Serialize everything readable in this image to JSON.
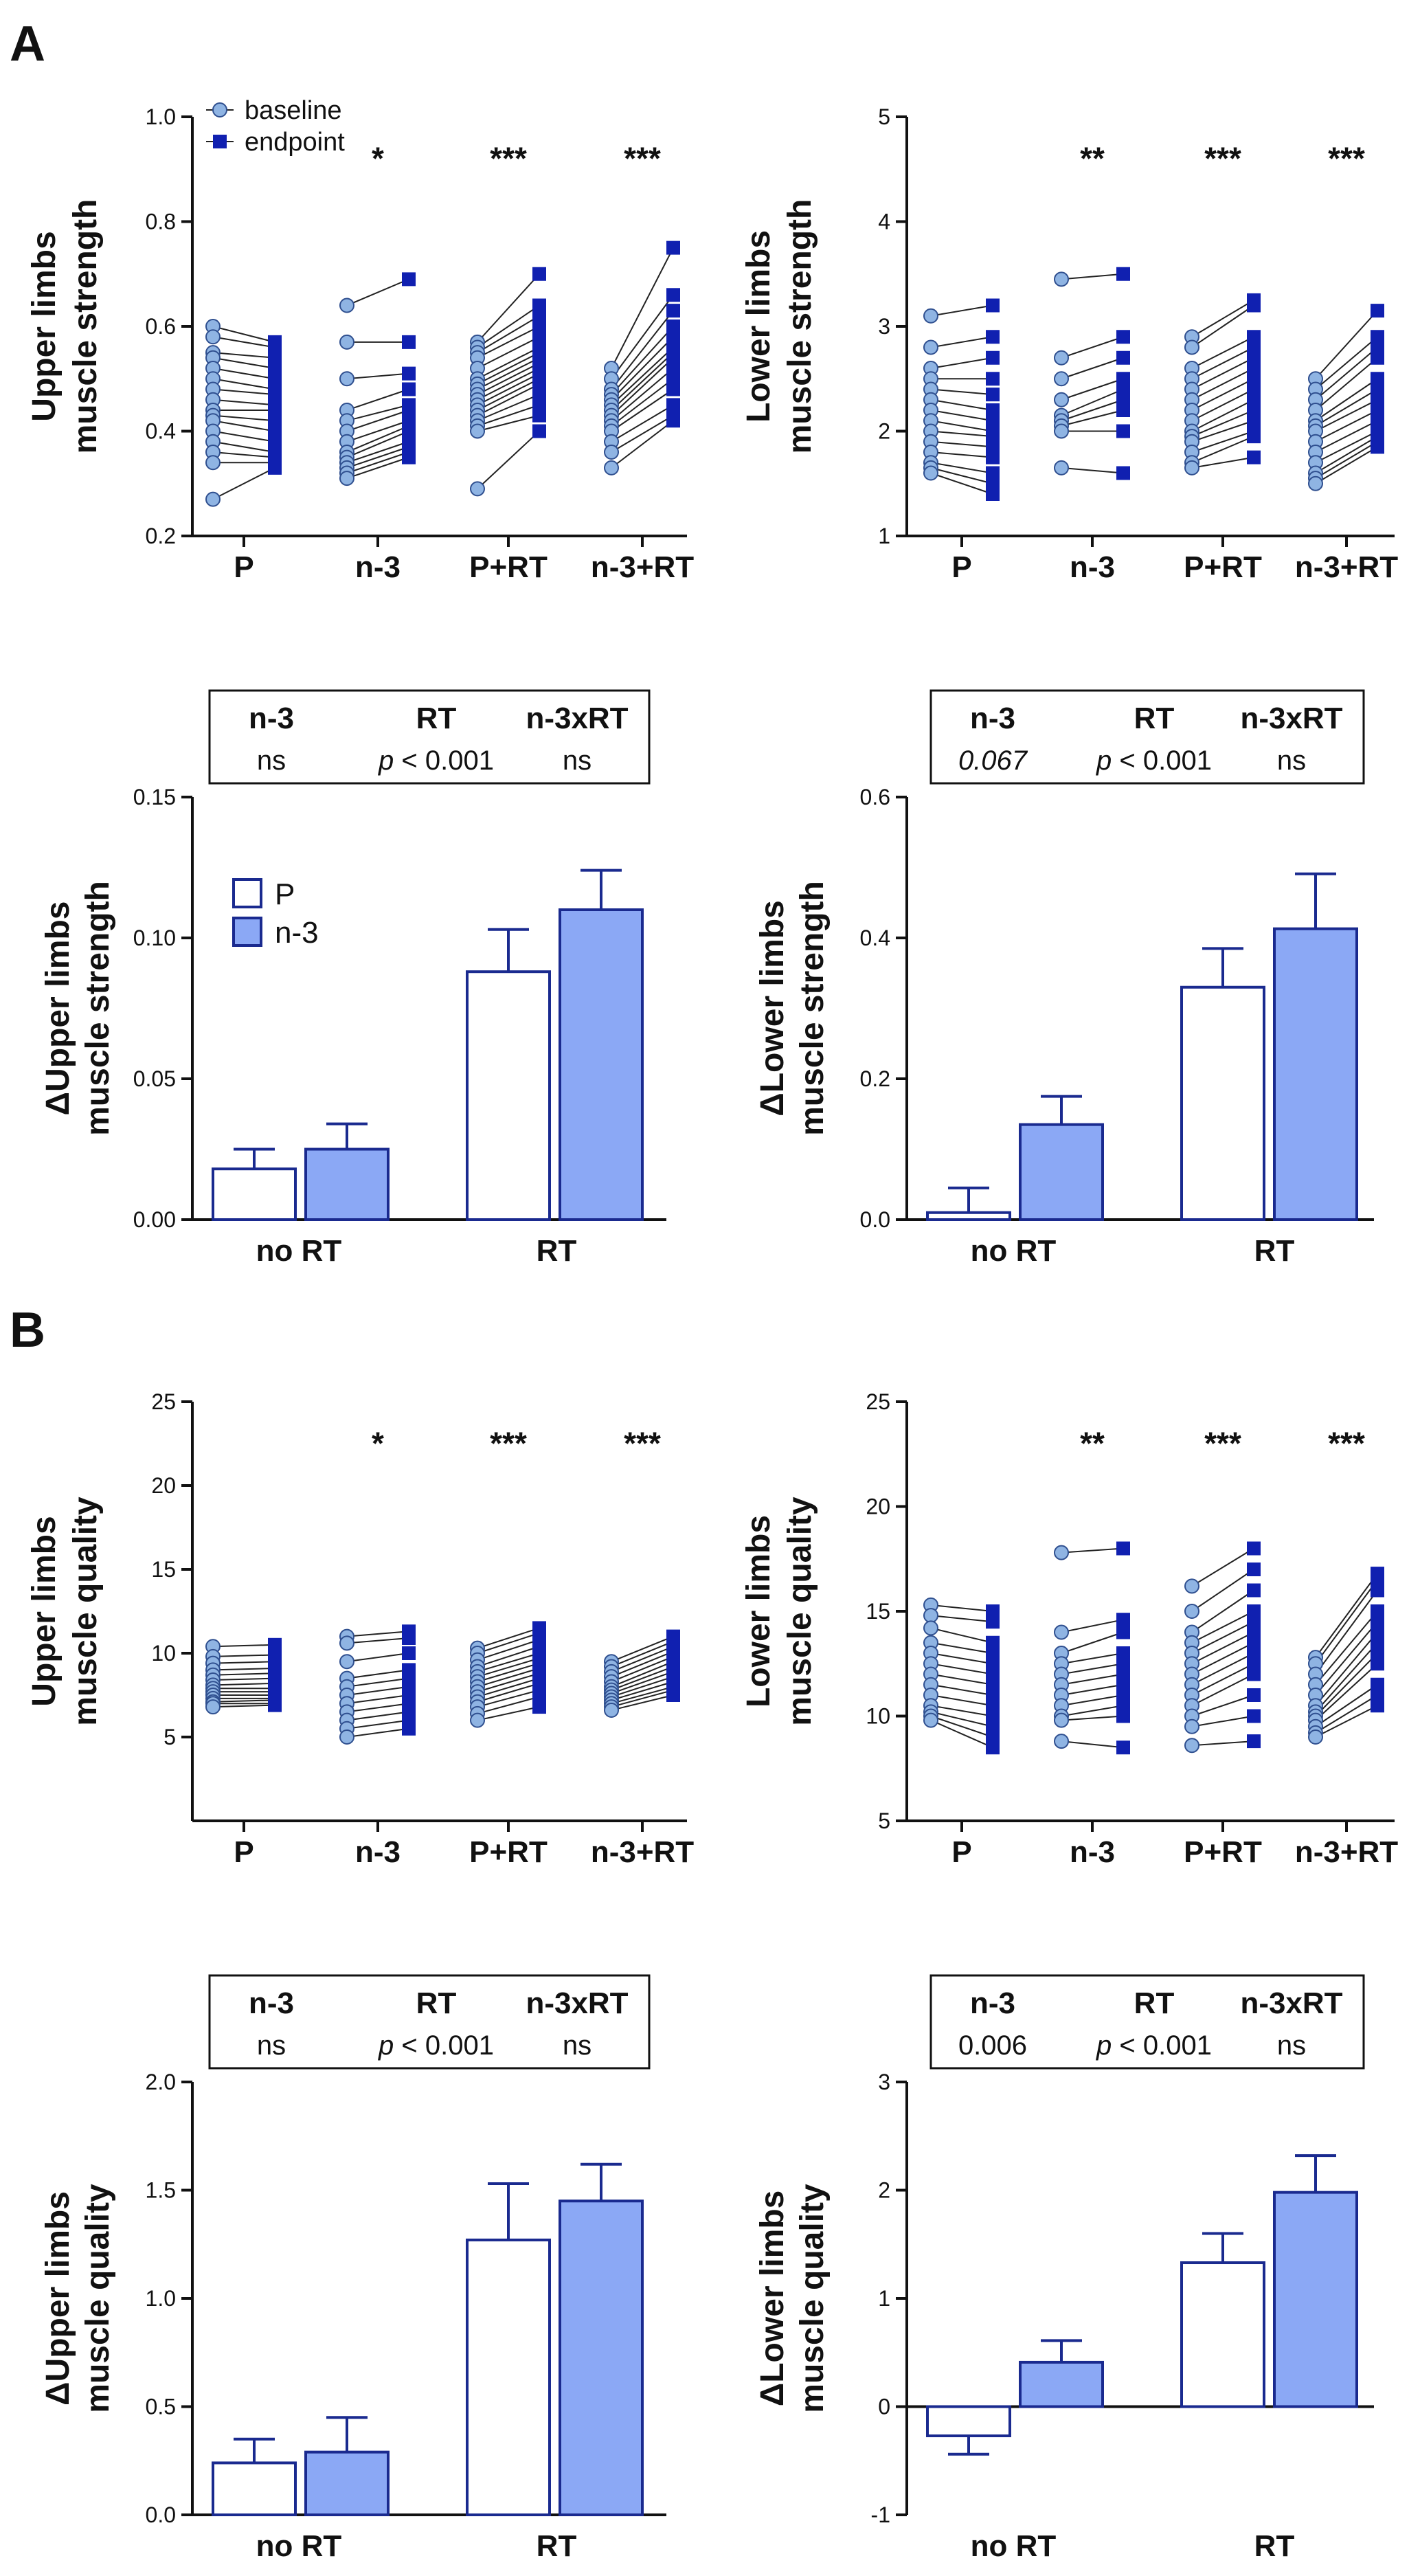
{
  "panel_labels": [
    "A",
    "B"
  ],
  "colors": {
    "baseline_fill": "#8fb4e3",
    "baseline_stroke": "#2f4f8f",
    "endpoint_fill": "#1020b0",
    "bar_p_fill": "#ffffff",
    "bar_n3_fill": "#8ba8f5",
    "bar_stroke": "#1a2a8f",
    "line": "#222222"
  },
  "legend_paired": {
    "baseline": "baseline",
    "endpoint": "endpoint"
  },
  "legend_bars": {
    "p": "P",
    "n3": "n-3"
  },
  "chart_data": [
    {
      "id": "upper-strength-paired",
      "type": "scatter",
      "ylabel": [
        "Upper limbs",
        "muscle strength"
      ],
      "categories": [
        "P",
        "n-3",
        "P+RT",
        "n-3+RT"
      ],
      "ylim": [
        0.2,
        1.0
      ],
      "yticks": [
        "0.2",
        "0.4",
        "0.6",
        "0.8",
        "1.0"
      ],
      "tickvals": [
        0.2,
        0.4,
        0.6,
        0.8,
        1.0
      ],
      "significance": [
        "",
        "*",
        "***",
        "***"
      ],
      "legend": true,
      "groups": [
        {
          "baseline": [
            0.6,
            0.58,
            0.55,
            0.54,
            0.52,
            0.5,
            0.48,
            0.46,
            0.44,
            0.43,
            0.42,
            0.4,
            0.38,
            0.36,
            0.34,
            0.27
          ],
          "endpoint": [
            0.57,
            0.56,
            0.54,
            0.52,
            0.5,
            0.48,
            0.47,
            0.45,
            0.44,
            0.42,
            0.4,
            0.38,
            0.36,
            0.35,
            0.34,
            0.33
          ]
        },
        {
          "baseline": [
            0.64,
            0.57,
            0.5,
            0.44,
            0.42,
            0.4,
            0.38,
            0.36,
            0.35,
            0.34,
            0.33,
            0.32,
            0.31
          ],
          "endpoint": [
            0.69,
            0.57,
            0.51,
            0.48,
            0.45,
            0.44,
            0.42,
            0.41,
            0.4,
            0.38,
            0.37,
            0.36,
            0.35
          ]
        },
        {
          "baseline": [
            0.57,
            0.56,
            0.55,
            0.54,
            0.52,
            0.5,
            0.49,
            0.48,
            0.47,
            0.46,
            0.45,
            0.44,
            0.43,
            0.42,
            0.41,
            0.4,
            0.29
          ],
          "endpoint": [
            0.7,
            0.64,
            0.62,
            0.6,
            0.58,
            0.56,
            0.55,
            0.54,
            0.53,
            0.52,
            0.51,
            0.5,
            0.49,
            0.47,
            0.45,
            0.43,
            0.4
          ]
        },
        {
          "baseline": [
            0.52,
            0.5,
            0.48,
            0.47,
            0.46,
            0.45,
            0.44,
            0.43,
            0.42,
            0.41,
            0.4,
            0.38,
            0.36,
            0.33
          ],
          "endpoint": [
            0.75,
            0.66,
            0.63,
            0.6,
            0.58,
            0.56,
            0.55,
            0.54,
            0.52,
            0.5,
            0.48,
            0.45,
            0.43,
            0.42
          ]
        }
      ]
    },
    {
      "id": "lower-strength-paired",
      "type": "scatter",
      "ylabel": [
        "Lower limbs",
        "muscle strength"
      ],
      "categories": [
        "P",
        "n-3",
        "P+RT",
        "n-3+RT"
      ],
      "ylim": [
        1,
        5
      ],
      "yticks": [
        "1",
        "2",
        "3",
        "4",
        "5"
      ],
      "tickvals": [
        1,
        2,
        3,
        4,
        5
      ],
      "significance": [
        "",
        "**",
        "***",
        "***"
      ],
      "legend": false,
      "groups": [
        {
          "baseline": [
            3.1,
            2.8,
            2.6,
            2.5,
            2.4,
            2.3,
            2.2,
            2.1,
            2.0,
            1.9,
            1.8,
            1.7,
            1.65,
            1.6
          ],
          "endpoint": [
            3.2,
            2.9,
            2.7,
            2.5,
            2.35,
            2.2,
            2.1,
            2.0,
            1.95,
            1.85,
            1.75,
            1.6,
            1.5,
            1.4
          ]
        },
        {
          "baseline": [
            3.45,
            2.7,
            2.5,
            2.3,
            2.15,
            2.1,
            2.05,
            2.0,
            1.65
          ],
          "endpoint": [
            3.5,
            2.9,
            2.7,
            2.5,
            2.4,
            2.3,
            2.2,
            2.0,
            1.6
          ]
        },
        {
          "baseline": [
            2.9,
            2.8,
            2.6,
            2.5,
            2.4,
            2.3,
            2.2,
            2.1,
            2.0,
            1.95,
            1.9,
            1.8,
            1.7,
            1.65
          ],
          "endpoint": [
            3.25,
            3.2,
            2.9,
            2.8,
            2.7,
            2.6,
            2.5,
            2.4,
            2.3,
            2.2,
            2.1,
            2.0,
            1.95,
            1.75
          ]
        },
        {
          "baseline": [
            2.5,
            2.4,
            2.3,
            2.2,
            2.1,
            2.05,
            2.0,
            1.9,
            1.8,
            1.7,
            1.6,
            1.55,
            1.5
          ],
          "endpoint": [
            3.15,
            2.9,
            2.8,
            2.7,
            2.5,
            2.4,
            2.3,
            2.2,
            2.1,
            2.0,
            1.95,
            1.9,
            1.85
          ]
        }
      ]
    },
    {
      "id": "delta-upper-strength",
      "type": "bar",
      "ylabel": [
        "ΔUpper limbs",
        "muscle strength"
      ],
      "categories": [
        "no RT",
        "RT"
      ],
      "ylim": [
        0,
        0.15
      ],
      "yticks": [
        "0.00",
        "0.05",
        "0.10",
        "0.15"
      ],
      "tickvals": [
        0,
        0.05,
        0.1,
        0.15
      ],
      "legend": true,
      "series": [
        {
          "name": "P",
          "values": [
            0.018,
            0.088
          ],
          "errors": [
            0.007,
            0.015
          ]
        },
        {
          "name": "n-3",
          "values": [
            0.025,
            0.11
          ],
          "errors": [
            0.009,
            0.014
          ]
        }
      ],
      "stats": {
        "headers": [
          "n-3",
          "RT",
          "n-3xRT"
        ],
        "values": [
          {
            "text": "ns",
            "italic": false
          },
          {
            "p": "p",
            "rest": " < 0.001"
          },
          {
            "text": "ns",
            "italic": false
          }
        ]
      }
    },
    {
      "id": "delta-lower-strength",
      "type": "bar",
      "ylabel": [
        "ΔLower limbs",
        "muscle strength"
      ],
      "categories": [
        "no RT",
        "RT"
      ],
      "ylim": [
        0,
        0.6
      ],
      "yticks": [
        "0.0",
        "0.2",
        "0.4",
        "0.6"
      ],
      "tickvals": [
        0,
        0.2,
        0.4,
        0.6
      ],
      "legend": false,
      "series": [
        {
          "name": "P",
          "values": [
            0.01,
            0.33
          ],
          "errors": [
            0.035,
            0.055
          ]
        },
        {
          "name": "n-3",
          "values": [
            0.135,
            0.413
          ],
          "errors": [
            0.04,
            0.078
          ]
        }
      ],
      "stats": {
        "headers": [
          "n-3",
          "RT",
          "n-3xRT"
        ],
        "values": [
          {
            "text": "0.067",
            "italic": true
          },
          {
            "p": "p",
            "rest": " < 0.001"
          },
          {
            "text": "ns",
            "italic": false
          }
        ]
      }
    },
    {
      "id": "upper-quality-paired",
      "type": "scatter",
      "ylabel": [
        "Upper limbs",
        "muscle quality"
      ],
      "categories": [
        "P",
        "n-3",
        "P+RT",
        "n-3+RT"
      ],
      "ylim": [
        0,
        25
      ],
      "yticks": [
        "5",
        "10",
        "15",
        "20",
        "25"
      ],
      "tickvals": [
        5,
        10,
        15,
        20,
        25
      ],
      "significance": [
        "",
        "*",
        "***",
        "***"
      ],
      "legend": false,
      "groups": [
        {
          "baseline": [
            10.4,
            9.8,
            9.4,
            9.0,
            8.7,
            8.4,
            8.1,
            7.9,
            7.7,
            7.5,
            7.3,
            7.1,
            7.0,
            6.8
          ],
          "endpoint": [
            10.5,
            9.9,
            9.5,
            9.1,
            8.8,
            8.5,
            8.2,
            7.9,
            7.7,
            7.5,
            7.3,
            7.2,
            7.0,
            6.9
          ]
        },
        {
          "baseline": [
            11.0,
            10.6,
            9.5,
            8.5,
            8.0,
            7.5,
            7.0,
            6.5,
            6.0,
            5.5,
            5.0
          ],
          "endpoint": [
            11.3,
            10.9,
            10.0,
            9.0,
            8.5,
            8.0,
            7.5,
            7.0,
            6.5,
            6.0,
            5.5
          ]
        },
        {
          "baseline": [
            10.3,
            10.0,
            9.6,
            9.2,
            8.9,
            8.6,
            8.3,
            8.0,
            7.7,
            7.4,
            7.1,
            6.8,
            6.4,
            6.0
          ],
          "endpoint": [
            11.5,
            11.2,
            10.8,
            10.4,
            10.0,
            9.7,
            9.4,
            9.1,
            8.8,
            8.5,
            8.2,
            7.8,
            7.4,
            6.8
          ]
        },
        {
          "baseline": [
            9.5,
            9.2,
            8.9,
            8.6,
            8.3,
            8.0,
            7.8,
            7.6,
            7.4,
            7.2,
            7.0,
            6.8,
            6.6
          ],
          "endpoint": [
            11.0,
            10.7,
            10.4,
            10.1,
            9.8,
            9.5,
            9.2,
            8.9,
            8.6,
            8.3,
            8.0,
            7.8,
            7.5
          ]
        }
      ]
    },
    {
      "id": "lower-quality-paired",
      "type": "scatter",
      "ylabel": [
        "Lower limbs",
        "muscle quality"
      ],
      "categories": [
        "P",
        "n-3",
        "P+RT",
        "n-3+RT"
      ],
      "ylim": [
        5,
        25
      ],
      "yticks": [
        "5",
        "10",
        "15",
        "20",
        "25"
      ],
      "tickvals": [
        5,
        10,
        15,
        20,
        25
      ],
      "significance": [
        "",
        "**",
        "***",
        "***"
      ],
      "legend": false,
      "groups": [
        {
          "baseline": [
            15.3,
            14.8,
            14.2,
            13.5,
            13.0,
            12.5,
            12.0,
            11.5,
            11.0,
            10.5,
            10.2,
            10.0,
            9.8
          ],
          "endpoint": [
            15.0,
            14.5,
            13.5,
            13.0,
            12.5,
            12.0,
            11.5,
            11.0,
            10.5,
            10.0,
            9.5,
            9.0,
            8.5
          ]
        },
        {
          "baseline": [
            17.8,
            14.0,
            13.0,
            12.5,
            12.0,
            11.5,
            11.0,
            10.5,
            10.0,
            9.8,
            8.8
          ],
          "endpoint": [
            18.0,
            14.6,
            14.0,
            13.0,
            12.5,
            12.0,
            11.5,
            11.0,
            10.5,
            10.0,
            8.5
          ]
        },
        {
          "baseline": [
            16.2,
            15.0,
            14.0,
            13.5,
            13.0,
            12.5,
            12.0,
            11.5,
            11.0,
            10.5,
            10.0,
            9.5,
            8.6
          ],
          "endpoint": [
            18.0,
            17.0,
            16.0,
            15.0,
            14.5,
            14.0,
            13.5,
            13.0,
            12.5,
            12.0,
            11.0,
            10.0,
            8.8
          ]
        },
        {
          "baseline": [
            12.8,
            12.5,
            12.0,
            11.5,
            11.0,
            10.5,
            10.2,
            10.0,
            9.8,
            9.5,
            9.2,
            9.0
          ],
          "endpoint": [
            16.8,
            16.5,
            16.0,
            15.0,
            14.5,
            14.0,
            13.5,
            13.0,
            12.5,
            11.5,
            11.0,
            10.5
          ]
        }
      ]
    },
    {
      "id": "delta-upper-quality",
      "type": "bar",
      "ylabel": [
        "ΔUpper limbs",
        "muscle quality"
      ],
      "categories": [
        "no RT",
        "RT"
      ],
      "ylim": [
        0,
        2.0
      ],
      "yticks": [
        "0.0",
        "0.5",
        "1.0",
        "1.5",
        "2.0"
      ],
      "tickvals": [
        0,
        0.5,
        1.0,
        1.5,
        2.0
      ],
      "legend": false,
      "series": [
        {
          "name": "P",
          "values": [
            0.24,
            1.27
          ],
          "errors": [
            0.11,
            0.26
          ]
        },
        {
          "name": "n-3",
          "values": [
            0.29,
            1.45
          ],
          "errors": [
            0.16,
            0.17
          ]
        }
      ],
      "stats": {
        "headers": [
          "n-3",
          "RT",
          "n-3xRT"
        ],
        "values": [
          {
            "text": "ns",
            "italic": false
          },
          {
            "p": "p",
            "rest": " < 0.001"
          },
          {
            "text": "ns",
            "italic": false
          }
        ]
      }
    },
    {
      "id": "delta-lower-quality",
      "type": "bar",
      "ylabel": [
        "ΔLower limbs",
        "muscle quality"
      ],
      "categories": [
        "no RT",
        "RT"
      ],
      "ylim": [
        -1,
        3
      ],
      "yticks": [
        "-1",
        "0",
        "1",
        "2",
        "3"
      ],
      "tickvals": [
        -1,
        0,
        1,
        2,
        3
      ],
      "legend": false,
      "series": [
        {
          "name": "P",
          "values": [
            -0.27,
            1.33
          ],
          "errors": [
            0.17,
            0.27
          ]
        },
        {
          "name": "n-3",
          "values": [
            0.41,
            1.98
          ],
          "errors": [
            0.2,
            0.34
          ]
        }
      ],
      "stats": {
        "headers": [
          "n-3",
          "RT",
          "n-3xRT"
        ],
        "values": [
          {
            "text": "0.006",
            "italic": false
          },
          {
            "p": "p",
            "rest": " < 0.001"
          },
          {
            "text": "ns",
            "italic": false
          }
        ]
      }
    }
  ]
}
